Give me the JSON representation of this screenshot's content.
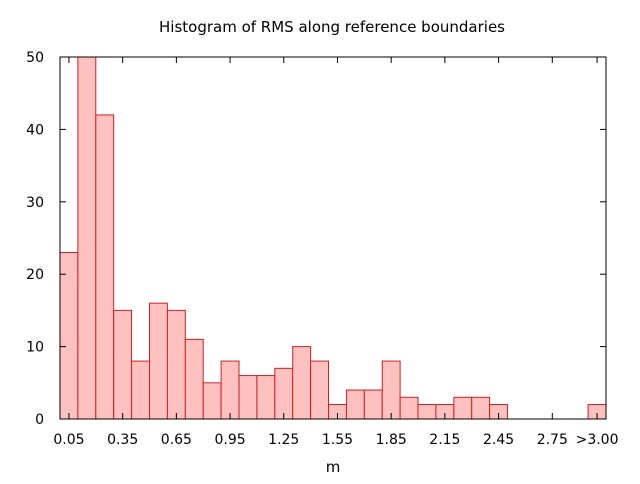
{
  "chart_data": {
    "type": "bar",
    "title": "Histogram of RMS along reference boundaries",
    "xlabel": "m",
    "ylabel": "",
    "bin_width": 0.1,
    "xlim": [
      0.0,
      3.05
    ],
    "ylim": [
      0,
      50
    ],
    "grid": false,
    "bar_fill": "#ffc0c0",
    "bar_stroke": "#cc2222",
    "x_ticks": [
      {
        "value": 0.05,
        "label": "0.05"
      },
      {
        "value": 0.35,
        "label": "0.35"
      },
      {
        "value": 0.65,
        "label": "0.65"
      },
      {
        "value": 0.95,
        "label": "0.95"
      },
      {
        "value": 1.25,
        "label": "1.25"
      },
      {
        "value": 1.55,
        "label": "1.55"
      },
      {
        "value": 1.85,
        "label": "1.85"
      },
      {
        "value": 2.15,
        "label": "2.15"
      },
      {
        "value": 2.45,
        "label": "2.45"
      },
      {
        "value": 2.75,
        "label": "2.75"
      },
      {
        "value": 3.0,
        "label": ">3.00"
      }
    ],
    "y_ticks": [
      0,
      10,
      20,
      30,
      40,
      50
    ],
    "bars": [
      {
        "x": 0.05,
        "value": 23
      },
      {
        "x": 0.15,
        "value": 50
      },
      {
        "x": 0.25,
        "value": 42
      },
      {
        "x": 0.35,
        "value": 15
      },
      {
        "x": 0.45,
        "value": 8
      },
      {
        "x": 0.55,
        "value": 16
      },
      {
        "x": 0.65,
        "value": 15
      },
      {
        "x": 0.75,
        "value": 11
      },
      {
        "x": 0.85,
        "value": 5
      },
      {
        "x": 0.95,
        "value": 8
      },
      {
        "x": 1.05,
        "value": 6
      },
      {
        "x": 1.15,
        "value": 6
      },
      {
        "x": 1.25,
        "value": 7
      },
      {
        "x": 1.35,
        "value": 10
      },
      {
        "x": 1.45,
        "value": 8
      },
      {
        "x": 1.55,
        "value": 2
      },
      {
        "x": 1.65,
        "value": 4
      },
      {
        "x": 1.75,
        "value": 4
      },
      {
        "x": 1.85,
        "value": 8
      },
      {
        "x": 1.95,
        "value": 3
      },
      {
        "x": 2.05,
        "value": 2
      },
      {
        "x": 2.15,
        "value": 2
      },
      {
        "x": 2.25,
        "value": 3
      },
      {
        "x": 2.35,
        "value": 3
      },
      {
        "x": 2.45,
        "value": 2
      },
      {
        "x": 3.0,
        "value": 2
      }
    ]
  }
}
